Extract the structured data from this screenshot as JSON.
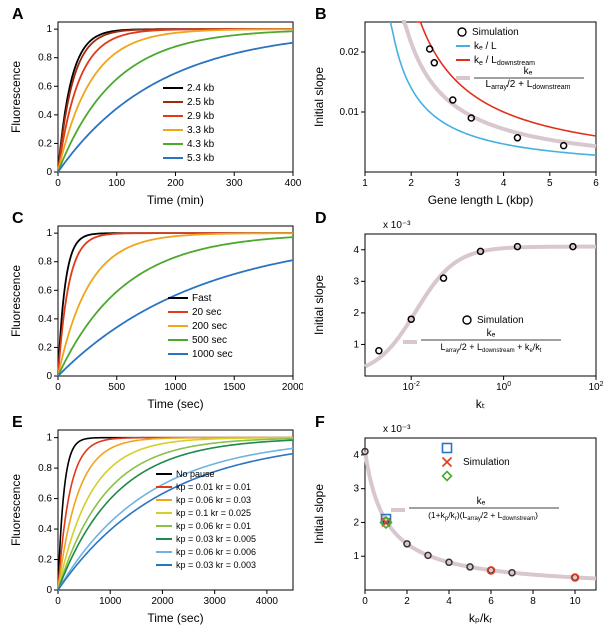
{
  "figure": {
    "panelA": {
      "label": "A",
      "type": "line",
      "xlabel": "Time (min)",
      "ylabel": "Fluorescence",
      "xlim": [
        0,
        400
      ],
      "xtick_step": 100,
      "ylim": [
        0,
        1.05
      ],
      "ytick_step": 0.2,
      "series": [
        {
          "name": "2.4 kb",
          "color": "#000000",
          "tau": 22
        },
        {
          "name": "2.5 kb",
          "color": "#9a2b0e",
          "tau": 25
        },
        {
          "name": "2.9 kb",
          "color": "#e03a19",
          "tau": 35
        },
        {
          "name": "3.3 kb",
          "color": "#f0a51b",
          "tau": 55
        },
        {
          "name": "4.3 kb",
          "color": "#4da82e",
          "tau": 95
        },
        {
          "name": "5.3 kb",
          "color": "#2b74c4",
          "tau": 170
        }
      ],
      "line_width": 1.8,
      "label_fontsize": 12,
      "tick_fontsize": 10,
      "background_color": "#ffffff",
      "axis_color": "#000000",
      "legend_pos": "inside-right"
    },
    "panelB": {
      "label": "B",
      "type": "line-scatter",
      "xlabel": "Gene length L (kbp)",
      "ylabel": "Initial slope",
      "xlim": [
        1,
        6
      ],
      "xtick_step": 1,
      "ylim": [
        0,
        0.025
      ],
      "yticks": [
        0.01,
        0.02
      ],
      "simulation_points": {
        "x": [
          2.4,
          2.5,
          2.9,
          3.3,
          4.3,
          5.3
        ],
        "y": [
          0.0205,
          0.0182,
          0.012,
          0.009,
          0.0057,
          0.0044
        ],
        "marker": "o",
        "color": "#000000",
        "size": 6
      },
      "curves": [
        {
          "name": "ke_over_L",
          "label": "ke / L",
          "color": "#43b0e2",
          "a": 0.014,
          "width": 1.6
        },
        {
          "name": "ke_over_Ldown",
          "label": "ke / Ldownstream",
          "color": "#e22f1c",
          "a": 0.03,
          "width": 1.6
        },
        {
          "name": "ke_combined",
          "label": "ke_combo",
          "color": "#d9c7cf",
          "a": 0.0215,
          "width": 4
        }
      ],
      "legend_entries": [
        {
          "marker": "o",
          "color": "#000000",
          "text": "Simulation"
        },
        {
          "line": "#43b0e2",
          "text": "kₑ / L"
        },
        {
          "line": "#e22f1c",
          "text": "kₑ / L_downstream"
        }
      ],
      "equation_text": "kₑ / (L_array/2 + L_downstream)",
      "label_fontsize": 12,
      "tick_fontsize": 10
    },
    "panelC": {
      "label": "C",
      "type": "line",
      "xlabel": "Time (sec)",
      "ylabel": "Fluorescence",
      "xlim": [
        0,
        2000
      ],
      "xtick_step": 500,
      "ylim": [
        0,
        1.05
      ],
      "ytick_step": 0.2,
      "series": [
        {
          "name": "Fast",
          "color": "#000000",
          "tau": 60
        },
        {
          "name": "20 sec",
          "color": "#e03a19",
          "tau": 90
        },
        {
          "name": "200 sec",
          "color": "#f0a51b",
          "tau": 260
        },
        {
          "name": "500 sec",
          "color": "#4da82e",
          "tau": 560
        },
        {
          "name": "1000 sec",
          "color": "#2b74c4",
          "tau": 1200
        }
      ],
      "line_width": 1.8,
      "label_fontsize": 12,
      "tick_fontsize": 10
    },
    "panelD": {
      "label": "D",
      "type": "scatter-curve",
      "xlabel": "kₜ",
      "ylabel": "Initial slope",
      "xscale": "log",
      "xlim_exp": [
        -3,
        2
      ],
      "xtick_exp": [
        -2,
        0,
        2
      ],
      "ylim": [
        0,
        4.5
      ],
      "ytick_step": 1,
      "y_scale_label": "x 10⁻³",
      "simulation_points": {
        "x_exp": [
          -2.7,
          -2.0,
          -1.3,
          -0.5,
          0.3,
          1.5
        ],
        "y": [
          0.8,
          1.8,
          3.1,
          3.95,
          4.1,
          4.1
        ],
        "marker": "o",
        "color": "#000000",
        "size": 6
      },
      "curve": {
        "color": "#d9c7cf",
        "width": 4,
        "ymax": 4.1,
        "x50_exp": -1.9
      },
      "equation_text": "kₑ / (L_array/2 + L_downstream + kₑ/kₜ)",
      "legend_entries": [
        {
          "marker": "o",
          "color": "#000000",
          "text": "Simulation"
        }
      ],
      "label_fontsize": 12,
      "tick_fontsize": 10
    },
    "panelE": {
      "label": "E",
      "type": "line",
      "xlabel": "Time (sec)",
      "ylabel": "Fluorescence",
      "xlim": [
        0,
        4500
      ],
      "xticks": [
        0,
        1000,
        2000,
        3000,
        4000
      ],
      "ylim": [
        0,
        1.05
      ],
      "ytick_step": 0.2,
      "series": [
        {
          "name": "No pause",
          "color": "#000000",
          "tau": 110
        },
        {
          "name": "kp = 0.01 kr = 0.01",
          "color": "#e03a19",
          "tau": 220
        },
        {
          "name": "kp = 0.06 kr = 0.03",
          "color": "#f0a51b",
          "tau": 380
        },
        {
          "name": "kp = 0.1  kr = 0.025",
          "color": "#d2d02a",
          "tau": 620
        },
        {
          "name": "kp = 0.06 kr = 0.01",
          "color": "#8bc04a",
          "tau": 900
        },
        {
          "name": "kp = 0.03 kr = 0.005",
          "color": "#1e8a4c",
          "tau": 1100
        },
        {
          "name": "kp = 0.06 kr = 0.006",
          "color": "#6fb4e0",
          "tau": 1700
        },
        {
          "name": "kp = 0.03 kr = 0.003",
          "color": "#2b74c4",
          "tau": 2000
        }
      ],
      "line_width": 1.6,
      "label_fontsize": 12,
      "tick_fontsize": 10,
      "legend_fontsize": 9
    },
    "panelF": {
      "label": "F",
      "type": "scatter-curve",
      "xlabel": "kₚ/k_r",
      "ylabel": "Initial slope",
      "xlim": [
        0,
        11
      ],
      "xticks": [
        0,
        2,
        4,
        6,
        8,
        10
      ],
      "ylim": [
        0,
        4.5
      ],
      "ytick_step": 1,
      "y_scale_label": "x 10⁻³",
      "curve": {
        "color": "#d9c7cf",
        "width": 4,
        "a": 4.1
      },
      "base_points": {
        "x": [
          0,
          1,
          2,
          3,
          4,
          5,
          6,
          7,
          10
        ],
        "marker": "o",
        "color": "#333333",
        "size": 6
      },
      "extra_markers": [
        {
          "shape": "square",
          "color": "#2b74c4",
          "x": 1.0,
          "y": 2.1,
          "size": 9
        },
        {
          "shape": "x",
          "color": "#e03a19",
          "x": 1.0,
          "y": 2.0,
          "size": 8
        },
        {
          "shape": "diamond",
          "color": "#4da82e",
          "x": 1.0,
          "y": 2.0,
          "size": 11
        },
        {
          "shape": "circlef",
          "color": "#e03a19",
          "x": 6.0,
          "y": 0.58,
          "size": 7
        },
        {
          "shape": "circlef",
          "color": "#e03a19",
          "x": 10.0,
          "y": 0.37,
          "size": 7
        }
      ],
      "legend_markers": [
        {
          "shape": "square",
          "color": "#2b74c4"
        },
        {
          "shape": "x",
          "color": "#e03a19"
        },
        {
          "shape": "diamond",
          "color": "#4da82e"
        }
      ],
      "legend_text": "Simulation",
      "equation_text": "kₑ / ((1+kₚ/k_r)(L_array/2 + L_downstream))",
      "label_fontsize": 12,
      "tick_fontsize": 10
    }
  }
}
